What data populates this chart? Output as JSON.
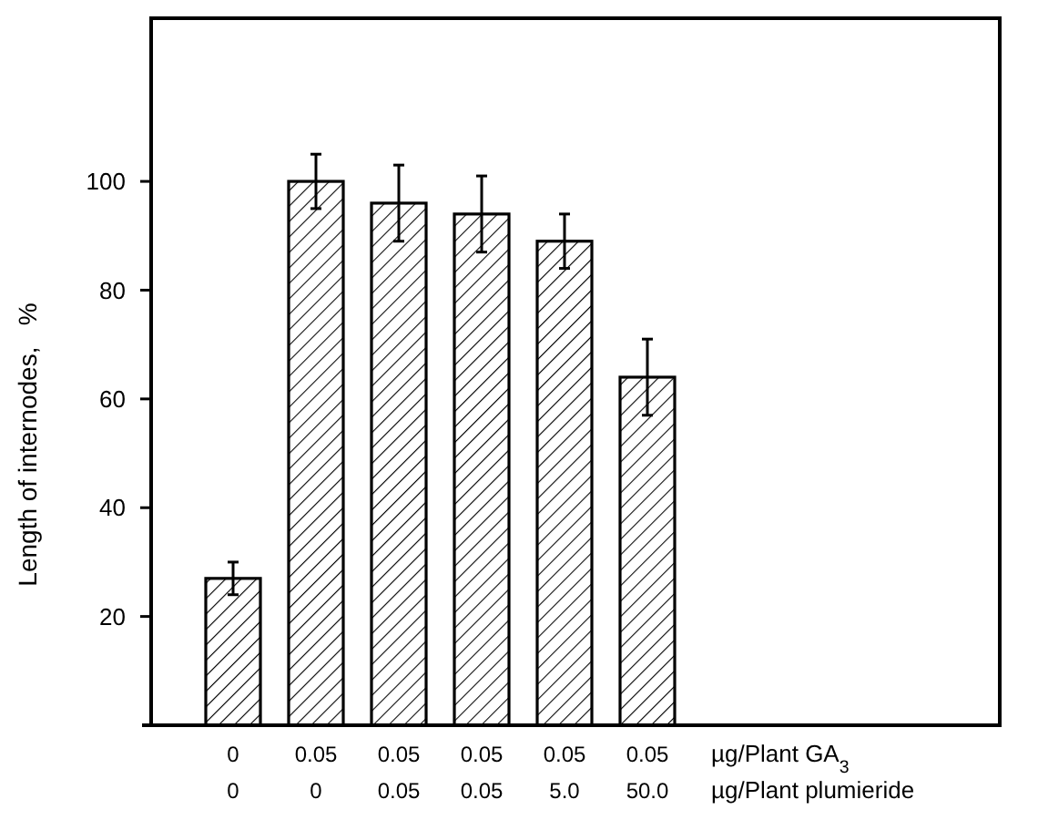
{
  "chart_data": {
    "type": "bar",
    "ylabel": "Length of internodes,   %",
    "categories": [
      "0\n0",
      "0.05\n0",
      "0.05\n0.05",
      "0.05\n0.05",
      "0.05\n5.0",
      "0.05\n50.0"
    ],
    "values": [
      27,
      100,
      96,
      94,
      89,
      64
    ],
    "errors": [
      3,
      5,
      7,
      7,
      5,
      7
    ],
    "color": "#000000",
    "ylim": [
      0,
      130
    ],
    "yticks": [
      20,
      40,
      60,
      80,
      100
    ],
    "annotations": [
      "µg/Plant GA$_{3}$",
      "µg/Plant plumieride"
    ]
  }
}
